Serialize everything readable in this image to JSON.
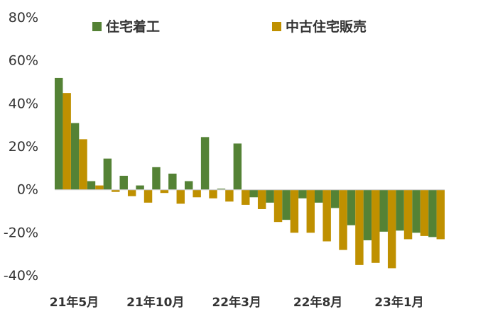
{
  "chart_data": {
    "type": "bar",
    "title": "",
    "xlabel": "",
    "ylabel": "",
    "ylim": [
      -40,
      80
    ],
    "y_ticks": [
      80,
      60,
      40,
      20,
      0,
      -20,
      -40
    ],
    "y_tick_labels": [
      "80%",
      "60%",
      "40%",
      "20%",
      "0%",
      "-20%",
      "-40%"
    ],
    "x_tick_labels": [
      {
        "label": "21年5月",
        "index": 0
      },
      {
        "label": "21年10月",
        "index": 5
      },
      {
        "label": "22年3月",
        "index": 10
      },
      {
        "label": "22年8月",
        "index": 15
      },
      {
        "label": "23年1月",
        "index": 20
      }
    ],
    "grid": false,
    "legend_position": "top",
    "categories": [
      "21-05",
      "21-06",
      "21-07",
      "21-08",
      "21-09",
      "21-10",
      "21-11",
      "21-12",
      "22-01",
      "22-02",
      "22-03",
      "22-04",
      "22-05",
      "22-06",
      "22-07",
      "22-08",
      "22-09",
      "22-10",
      "22-11",
      "22-12",
      "23-01",
      "23-02",
      "23-03",
      "23-04"
    ],
    "series": [
      {
        "name": "住宅着工",
        "color": "#548235",
        "values": [
          52,
          31,
          4,
          14.5,
          6.5,
          2,
          10.5,
          7.5,
          4,
          24.5,
          0.5,
          21.5,
          -3.5,
          -6,
          -14,
          -4,
          -6,
          -8.5,
          -16.5,
          -23.5,
          -19.5,
          -19,
          -20,
          -22
        ]
      },
      {
        "name": "中古住宅販売",
        "color": "#BF9000",
        "values": [
          45,
          23.5,
          2,
          -1,
          -3,
          -6,
          -1.5,
          -6.5,
          -3.5,
          -4,
          -5.5,
          -7,
          -9,
          -15,
          -20,
          -20,
          -24,
          -28,
          -35,
          -34,
          -36.5,
          -23,
          -21.5,
          -23
        ]
      }
    ]
  }
}
